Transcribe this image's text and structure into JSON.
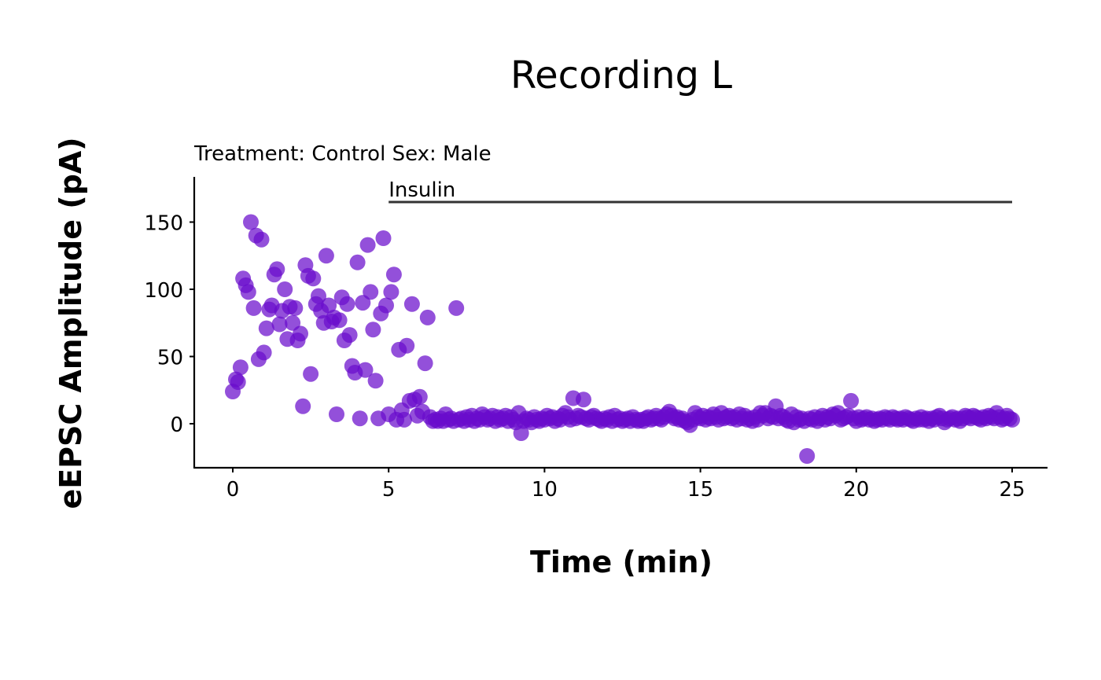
{
  "chart_data": {
    "type": "scatter",
    "title": "Recording L",
    "subtitle": "Treatment: Control  Sex: Male",
    "xlabel": "Time (min)",
    "ylabel": "eEPSC Amplitude (pA)",
    "xlim": [
      -1.2,
      26.2
    ],
    "ylim": [
      -33,
      184
    ],
    "xticks": [
      "0",
      "5",
      "10",
      "15",
      "20",
      "25"
    ],
    "xtick_values": [
      0,
      5,
      10,
      15,
      20,
      25
    ],
    "yticks": [
      "0",
      "50",
      "100",
      "150"
    ],
    "ytick_values": [
      0,
      50,
      100,
      150
    ],
    "grid": false,
    "legend": "none",
    "point_color": "#6a0dcc",
    "annotation": {
      "label": "Insulin",
      "x_start": 5,
      "x_end": 25,
      "y": 165
    },
    "series": [
      {
        "points": [
          [
            0.0,
            24
          ],
          [
            0.1,
            33
          ],
          [
            0.17,
            31
          ],
          [
            0.25,
            42
          ],
          [
            0.33,
            108
          ],
          [
            0.42,
            103
          ],
          [
            0.5,
            98
          ],
          [
            0.58,
            150
          ],
          [
            0.67,
            86
          ],
          [
            0.75,
            140
          ],
          [
            0.83,
            48
          ],
          [
            0.92,
            137
          ],
          [
            1.0,
            53
          ],
          [
            1.08,
            71
          ],
          [
            1.17,
            85
          ],
          [
            1.25,
            88
          ],
          [
            1.33,
            111
          ],
          [
            1.42,
            115
          ],
          [
            1.5,
            74
          ],
          [
            1.58,
            84
          ],
          [
            1.67,
            100
          ],
          [
            1.75,
            63
          ],
          [
            1.83,
            87
          ],
          [
            1.92,
            75
          ],
          [
            2.0,
            86
          ],
          [
            2.08,
            62
          ],
          [
            2.17,
            67
          ],
          [
            2.25,
            13
          ],
          [
            2.33,
            118
          ],
          [
            2.42,
            110
          ],
          [
            2.5,
            37
          ],
          [
            2.58,
            108
          ],
          [
            2.67,
            89
          ],
          [
            2.75,
            95
          ],
          [
            2.83,
            84
          ],
          [
            2.92,
            75
          ],
          [
            3.0,
            125
          ],
          [
            3.08,
            88
          ],
          [
            3.17,
            76
          ],
          [
            3.25,
            79
          ],
          [
            3.33,
            7
          ],
          [
            3.42,
            77
          ],
          [
            3.5,
            94
          ],
          [
            3.58,
            62
          ],
          [
            3.67,
            89
          ],
          [
            3.75,
            66
          ],
          [
            3.83,
            43
          ],
          [
            3.92,
            38
          ],
          [
            4.0,
            120
          ],
          [
            4.08,
            4
          ],
          [
            4.17,
            90
          ],
          [
            4.25,
            40
          ],
          [
            4.33,
            133
          ],
          [
            4.42,
            98
          ],
          [
            4.5,
            70
          ],
          [
            4.58,
            32
          ],
          [
            4.67,
            4
          ],
          [
            4.75,
            82
          ],
          [
            4.83,
            138
          ],
          [
            4.92,
            88
          ],
          [
            5.0,
            7
          ],
          [
            5.08,
            98
          ],
          [
            5.17,
            111
          ],
          [
            5.25,
            3
          ],
          [
            5.33,
            55
          ],
          [
            5.42,
            10
          ],
          [
            5.5,
            3
          ],
          [
            5.58,
            58
          ],
          [
            5.67,
            17
          ],
          [
            5.75,
            89
          ],
          [
            5.83,
            18
          ],
          [
            5.92,
            6
          ],
          [
            6.0,
            20
          ],
          [
            6.08,
            9
          ],
          [
            6.17,
            45
          ],
          [
            6.25,
            79
          ],
          [
            6.33,
            5
          ],
          [
            6.42,
            2
          ],
          [
            6.5,
            3
          ],
          [
            6.58,
            2
          ],
          [
            6.67,
            4
          ],
          [
            6.75,
            2
          ],
          [
            6.83,
            7
          ],
          [
            6.92,
            3
          ],
          [
            7.0,
            4
          ],
          [
            7.08,
            2
          ],
          [
            7.17,
            86
          ],
          [
            7.25,
            3
          ],
          [
            7.33,
            4
          ],
          [
            7.42,
            2
          ],
          [
            7.5,
            5
          ],
          [
            7.58,
            3
          ],
          [
            7.67,
            6
          ],
          [
            7.75,
            2
          ],
          [
            7.83,
            4
          ],
          [
            7.92,
            3
          ],
          [
            8.0,
            7
          ],
          [
            8.08,
            5
          ],
          [
            8.17,
            3
          ],
          [
            8.25,
            4
          ],
          [
            8.33,
            6
          ],
          [
            8.42,
            2
          ],
          [
            8.5,
            5
          ],
          [
            8.58,
            3
          ],
          [
            8.67,
            4
          ],
          [
            8.75,
            6
          ],
          [
            8.83,
            2
          ],
          [
            8.92,
            5
          ],
          [
            9.0,
            3
          ],
          [
            9.08,
            1
          ],
          [
            9.17,
            8
          ],
          [
            9.25,
            -7
          ],
          [
            9.33,
            2
          ],
          [
            9.42,
            4
          ],
          [
            9.5,
            3
          ],
          [
            9.58,
            1
          ],
          [
            9.67,
            5
          ],
          [
            9.75,
            3
          ],
          [
            9.83,
            2
          ],
          [
            9.92,
            4
          ],
          [
            10.0,
            3
          ],
          [
            10.08,
            6
          ],
          [
            10.17,
            4
          ],
          [
            10.25,
            5
          ],
          [
            10.33,
            2
          ],
          [
            10.42,
            4
          ],
          [
            10.5,
            3
          ],
          [
            10.58,
            6
          ],
          [
            10.67,
            8
          ],
          [
            10.75,
            5
          ],
          [
            10.83,
            3
          ],
          [
            10.92,
            19
          ],
          [
            11.0,
            4
          ],
          [
            11.08,
            6
          ],
          [
            11.17,
            5
          ],
          [
            11.25,
            18
          ],
          [
            11.33,
            4
          ],
          [
            11.42,
            3
          ],
          [
            11.5,
            5
          ],
          [
            11.58,
            6
          ],
          [
            11.67,
            4
          ],
          [
            11.75,
            3
          ],
          [
            11.83,
            2
          ],
          [
            11.92,
            4
          ],
          [
            12.0,
            3
          ],
          [
            12.08,
            5
          ],
          [
            12.17,
            2
          ],
          [
            12.25,
            6
          ],
          [
            12.33,
            3
          ],
          [
            12.42,
            4
          ],
          [
            12.5,
            2
          ],
          [
            12.58,
            3
          ],
          [
            12.67,
            4
          ],
          [
            12.75,
            2
          ],
          [
            12.83,
            5
          ],
          [
            12.92,
            3
          ],
          [
            13.0,
            2
          ],
          [
            13.08,
            3
          ],
          [
            13.17,
            2
          ],
          [
            13.25,
            4
          ],
          [
            13.33,
            5
          ],
          [
            13.42,
            3
          ],
          [
            13.5,
            4
          ],
          [
            13.58,
            6
          ],
          [
            13.67,
            4
          ],
          [
            13.75,
            3
          ],
          [
            13.83,
            5
          ],
          [
            13.92,
            7
          ],
          [
            14.0,
            9
          ],
          [
            14.08,
            6
          ],
          [
            14.17,
            4
          ],
          [
            14.25,
            5
          ],
          [
            14.33,
            3
          ],
          [
            14.42,
            4
          ],
          [
            14.5,
            2
          ],
          [
            14.58,
            1
          ],
          [
            14.67,
            -1
          ],
          [
            14.75,
            3
          ],
          [
            14.83,
            8
          ],
          [
            14.92,
            5
          ],
          [
            15.0,
            4
          ],
          [
            15.08,
            6
          ],
          [
            15.17,
            3
          ],
          [
            15.25,
            5
          ],
          [
            15.33,
            4
          ],
          [
            15.42,
            7
          ],
          [
            15.5,
            5
          ],
          [
            15.58,
            3
          ],
          [
            15.67,
            8
          ],
          [
            15.75,
            4
          ],
          [
            15.83,
            5
          ],
          [
            15.92,
            6
          ],
          [
            16.0,
            4
          ],
          [
            16.08,
            5
          ],
          [
            16.17,
            3
          ],
          [
            16.25,
            7
          ],
          [
            16.33,
            4
          ],
          [
            16.42,
            6
          ],
          [
            16.5,
            3
          ],
          [
            16.58,
            4
          ],
          [
            16.67,
            2
          ],
          [
            16.75,
            5
          ],
          [
            16.83,
            3
          ],
          [
            16.92,
            8
          ],
          [
            17.0,
            6
          ],
          [
            17.08,
            8
          ],
          [
            17.17,
            4
          ],
          [
            17.25,
            6
          ],
          [
            17.33,
            5
          ],
          [
            17.42,
            13
          ],
          [
            17.5,
            4
          ],
          [
            17.58,
            6
          ],
          [
            17.67,
            5
          ],
          [
            17.75,
            3
          ],
          [
            17.83,
            2
          ],
          [
            17.92,
            7
          ],
          [
            18.0,
            1
          ],
          [
            18.08,
            5
          ],
          [
            18.17,
            3
          ],
          [
            18.25,
            4
          ],
          [
            18.33,
            2
          ],
          [
            18.42,
            -24
          ],
          [
            18.5,
            4
          ],
          [
            18.58,
            3
          ],
          [
            18.67,
            5
          ],
          [
            18.75,
            2
          ],
          [
            18.83,
            4
          ],
          [
            18.92,
            6
          ],
          [
            19.0,
            3
          ],
          [
            19.08,
            5
          ],
          [
            19.17,
            4
          ],
          [
            19.25,
            7
          ],
          [
            19.33,
            6
          ],
          [
            19.42,
            8
          ],
          [
            19.5,
            3
          ],
          [
            19.58,
            4
          ],
          [
            19.67,
            5
          ],
          [
            19.75,
            6
          ],
          [
            19.83,
            17
          ],
          [
            19.92,
            4
          ],
          [
            20.0,
            2
          ],
          [
            20.08,
            5
          ],
          [
            20.17,
            3
          ],
          [
            20.25,
            4
          ],
          [
            20.33,
            5
          ],
          [
            20.42,
            3
          ],
          [
            20.5,
            4
          ],
          [
            20.58,
            2
          ],
          [
            20.67,
            3
          ],
          [
            20.75,
            4
          ],
          [
            20.83,
            3
          ],
          [
            20.92,
            5
          ],
          [
            21.0,
            4
          ],
          [
            21.08,
            3
          ],
          [
            21.17,
            5
          ],
          [
            21.25,
            4
          ],
          [
            21.33,
            3
          ],
          [
            21.42,
            4
          ],
          [
            21.5,
            3
          ],
          [
            21.58,
            5
          ],
          [
            21.67,
            4
          ],
          [
            21.75,
            3
          ],
          [
            21.83,
            2
          ],
          [
            21.92,
            4
          ],
          [
            22.0,
            3
          ],
          [
            22.08,
            5
          ],
          [
            22.17,
            3
          ],
          [
            22.25,
            4
          ],
          [
            22.33,
            2
          ],
          [
            22.42,
            4
          ],
          [
            22.5,
            3
          ],
          [
            22.58,
            5
          ],
          [
            22.67,
            6
          ],
          [
            22.75,
            4
          ],
          [
            22.83,
            1
          ],
          [
            22.92,
            3
          ],
          [
            23.0,
            4
          ],
          [
            23.08,
            5
          ],
          [
            23.17,
            3
          ],
          [
            23.25,
            4
          ],
          [
            23.33,
            2
          ],
          [
            23.42,
            4
          ],
          [
            23.5,
            6
          ],
          [
            23.58,
            5
          ],
          [
            23.67,
            4
          ],
          [
            23.75,
            6
          ],
          [
            23.83,
            5
          ],
          [
            23.92,
            4
          ],
          [
            24.0,
            3
          ],
          [
            24.08,
            5
          ],
          [
            24.17,
            4
          ],
          [
            24.25,
            6
          ],
          [
            24.33,
            5
          ],
          [
            24.42,
            4
          ],
          [
            24.5,
            8
          ],
          [
            24.58,
            5
          ],
          [
            24.67,
            3
          ],
          [
            24.75,
            4
          ],
          [
            24.83,
            6
          ],
          [
            24.92,
            4
          ],
          [
            25.0,
            3
          ]
        ]
      }
    ]
  }
}
